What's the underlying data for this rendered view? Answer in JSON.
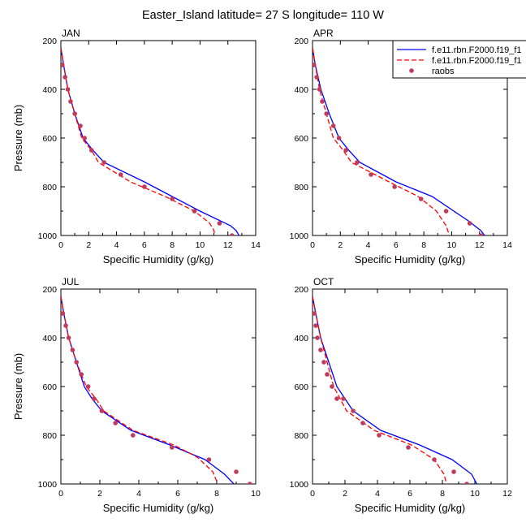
{
  "title": "Easter_Island  latitude= 27 S longitude= 110 W",
  "legend": {
    "placement": "top-right of APR panel",
    "entries": [
      {
        "label": "f.e11.rbn.F2000.f19_f1",
        "color": "#0000ff",
        "style": "solid"
      },
      {
        "label": "f.e11.rbn.F2000.f19_f1",
        "color": "#ff0000",
        "style": "dashed"
      },
      {
        "label": "raobs",
        "color": "#c03a5a",
        "style": "marker"
      }
    ]
  },
  "colors": {
    "model1": "#0000ff",
    "model2": "#ff0000",
    "obs": "#c03a5a"
  },
  "chart_data": [
    {
      "type": "line",
      "panel": "JAN",
      "xlabel": "Specific Humidity (g/kg)",
      "ylabel": "Pressure (mb)",
      "xlim": [
        0,
        14
      ],
      "ylim": [
        1000,
        200
      ],
      "xticks": [
        "0",
        "2",
        "4",
        "6",
        "8",
        "10",
        "12",
        "14"
      ],
      "yticks": [
        "200",
        "400",
        "600",
        "800",
        "1000"
      ],
      "series": [
        {
          "name": "f.e11.rbn.F2000.f19_f1",
          "style": "solid",
          "x": [
            0.0,
            0.2,
            0.5,
            1.0,
            1.6,
            2.3,
            3.1,
            6.0,
            8.0,
            10.0,
            12.2,
            12.6,
            12.9
          ],
          "y": [
            230,
            300,
            400,
            500,
            600,
            650,
            700,
            780,
            840,
            900,
            960,
            980,
            1010
          ]
        },
        {
          "name": "f.e11.rbn.F2000.f19_f1",
          "style": "dashed",
          "x": [
            0.0,
            0.2,
            0.5,
            1.0,
            1.5,
            2.2,
            2.7,
            5.0,
            7.5,
            9.6,
            10.7,
            11.0,
            11.1
          ],
          "y": [
            230,
            300,
            400,
            500,
            600,
            650,
            700,
            780,
            840,
            900,
            950,
            980,
            1010
          ]
        },
        {
          "name": "raobs",
          "style": "marker",
          "x": [
            0.1,
            0.3,
            0.5,
            0.7,
            1.0,
            1.4,
            1.7,
            2.2,
            3.1,
            4.3,
            6.0,
            8.0,
            9.6,
            11.4,
            12.3
          ],
          "y": [
            300,
            350,
            400,
            450,
            500,
            550,
            600,
            650,
            700,
            750,
            800,
            850,
            900,
            950,
            1000
          ]
        }
      ]
    },
    {
      "type": "line",
      "panel": "APR",
      "xlabel": "Specific Humidity (g/kg)",
      "ylabel": "",
      "xlim": [
        0,
        14
      ],
      "ylim": [
        1000,
        200
      ],
      "xticks": [
        "0",
        "2",
        "4",
        "6",
        "8",
        "10",
        "12",
        "14"
      ],
      "yticks": [
        "200",
        "400",
        "600",
        "800",
        "1000"
      ],
      "series": [
        {
          "name": "f.e11.rbn.F2000.f19_f1",
          "style": "solid",
          "x": [
            0.0,
            0.2,
            0.6,
            1.2,
            1.9,
            2.6,
            3.4,
            6.0,
            8.6,
            11.2,
            12.1,
            12.5
          ],
          "y": [
            230,
            300,
            400,
            500,
            600,
            650,
            700,
            780,
            840,
            940,
            980,
            1010
          ]
        },
        {
          "name": "f.e11.rbn.F2000.f19_f1",
          "style": "dashed",
          "x": [
            0.0,
            0.2,
            0.5,
            1.0,
            1.5,
            2.2,
            2.8,
            5.5,
            7.6,
            8.9,
            9.6,
            9.9
          ],
          "y": [
            230,
            300,
            400,
            500,
            600,
            650,
            700,
            780,
            840,
            900,
            960,
            1010
          ]
        },
        {
          "name": "raobs",
          "style": "marker",
          "x": [
            0.1,
            0.3,
            0.5,
            0.7,
            1.0,
            1.5,
            1.9,
            2.4,
            3.2,
            4.2,
            5.9,
            7.8,
            9.6,
            11.3,
            12.1
          ],
          "y": [
            300,
            350,
            400,
            450,
            500,
            550,
            600,
            650,
            700,
            750,
            800,
            850,
            900,
            950,
            1000
          ]
        }
      ]
    },
    {
      "type": "line",
      "panel": "JUL",
      "xlabel": "Specific Humidity (g/kg)",
      "ylabel": "Pressure (mb)",
      "xlim": [
        0,
        10
      ],
      "ylim": [
        1000,
        200
      ],
      "xticks": [
        "0",
        "2",
        "4",
        "6",
        "8",
        "10"
      ],
      "yticks": [
        "200",
        "400",
        "600",
        "800",
        "1000"
      ],
      "series": [
        {
          "name": "f.e11.rbn.F2000.f19_f1",
          "style": "solid",
          "x": [
            0.0,
            0.15,
            0.4,
            0.8,
            1.2,
            1.6,
            2.1,
            3.6,
            5.6,
            7.4,
            8.4,
            9.0
          ],
          "y": [
            230,
            300,
            400,
            500,
            600,
            650,
            700,
            780,
            840,
            900,
            960,
            1010
          ]
        },
        {
          "name": "f.e11.rbn.F2000.f19_f1",
          "style": "dashed",
          "x": [
            0.0,
            0.15,
            0.4,
            0.8,
            1.3,
            1.8,
            2.2,
            3.7,
            5.8,
            7.0,
            7.8,
            8.1
          ],
          "y": [
            230,
            300,
            400,
            500,
            600,
            650,
            700,
            780,
            840,
            890,
            950,
            1010
          ]
        },
        {
          "name": "raobs",
          "style": "marker",
          "x": [
            0.1,
            0.25,
            0.4,
            0.6,
            0.8,
            1.05,
            1.4,
            1.7,
            2.1,
            2.8,
            3.7,
            5.7,
            7.6,
            9.0,
            9.7
          ],
          "y": [
            300,
            350,
            400,
            450,
            500,
            550,
            600,
            650,
            700,
            750,
            800,
            850,
            900,
            950,
            1000
          ]
        }
      ]
    },
    {
      "type": "line",
      "panel": "OCT",
      "xlabel": "Specific Humidity (g/kg)",
      "ylabel": "",
      "xlim": [
        0,
        12
      ],
      "ylim": [
        1000,
        200
      ],
      "xticks": [
        "0",
        "2",
        "4",
        "6",
        "8",
        "10",
        "12"
      ],
      "yticks": [
        "200",
        "400",
        "600",
        "800",
        "1000"
      ],
      "series": [
        {
          "name": "f.e11.rbn.F2000.f19_f1",
          "style": "solid",
          "x": [
            0.0,
            0.2,
            0.5,
            1.0,
            1.5,
            2.0,
            2.5,
            4.2,
            6.6,
            8.6,
            9.8,
            10.2
          ],
          "y": [
            230,
            300,
            400,
            500,
            600,
            650,
            700,
            780,
            840,
            900,
            960,
            1010
          ]
        },
        {
          "name": "f.e11.rbn.F2000.f19_f1",
          "style": "dashed",
          "x": [
            0.0,
            0.2,
            0.5,
            0.9,
            1.3,
            1.7,
            2.1,
            3.8,
            6.1,
            7.5,
            8.1,
            8.3
          ],
          "y": [
            230,
            300,
            400,
            500,
            600,
            650,
            700,
            780,
            840,
            900,
            960,
            1010
          ]
        },
        {
          "name": "raobs",
          "style": "marker",
          "x": [
            0.1,
            0.2,
            0.3,
            0.5,
            0.7,
            0.9,
            1.2,
            1.5,
            1.9,
            2.5,
            3.1,
            4.1,
            5.9,
            7.5,
            8.7,
            9.5
          ],
          "y": [
            300,
            350,
            400,
            450,
            500,
            550,
            600,
            650,
            650,
            700,
            750,
            800,
            850,
            900,
            950,
            1000
          ]
        }
      ]
    }
  ]
}
